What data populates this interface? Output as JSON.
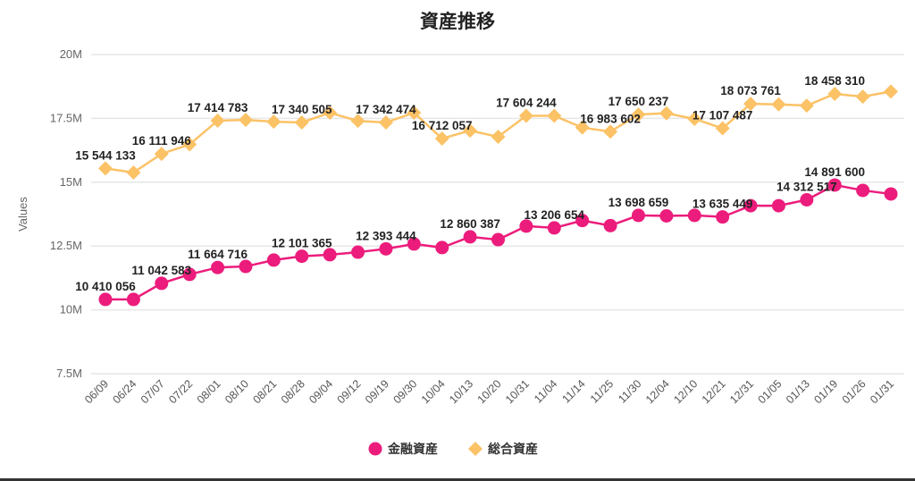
{
  "chart_data": {
    "type": "line",
    "title": "資産推移",
    "xlabel": "",
    "ylabel": "Values",
    "ylim": [
      7.5,
      20
    ],
    "yticks": [
      "7.5M",
      "10M",
      "12.5M",
      "15M",
      "17.5M",
      "20M"
    ],
    "ytick_values": [
      7.5,
      10,
      12.5,
      15,
      17.5,
      20
    ],
    "grid": true,
    "legend_position": "bottom-center",
    "categories": [
      "06/09",
      "06/24",
      "07/07",
      "07/22",
      "08/01",
      "08/10",
      "08/21",
      "08/28",
      "09/04",
      "09/12",
      "09/19",
      "09/30",
      "10/04",
      "10/13",
      "10/20",
      "10/31",
      "11/04",
      "11/14",
      "11/25",
      "11/30",
      "12/04",
      "12/10",
      "12/21",
      "12/31",
      "01/05",
      "01/13",
      "01/19",
      "01/26",
      "01/31"
    ],
    "series": [
      {
        "name": "金融資産",
        "color": "#ec1c7c",
        "marker": "circle",
        "values": [
          10.41,
          10.41,
          11.04,
          11.39,
          11.66,
          11.7,
          11.95,
          12.1,
          12.16,
          12.26,
          12.39,
          12.58,
          12.44,
          12.86,
          12.75,
          13.28,
          13.21,
          13.5,
          13.3,
          13.7,
          13.68,
          13.7,
          13.64,
          14.08,
          14.08,
          14.31,
          14.89,
          14.68,
          14.54
        ],
        "labels": [
          "10 410 056",
          null,
          "11 042 583",
          null,
          "11 664 716",
          null,
          null,
          "12 101 365",
          null,
          null,
          "12 393 444",
          null,
          null,
          "12 860 387",
          null,
          null,
          "13 206 654",
          null,
          null,
          "13 698 659",
          null,
          null,
          "13 635 449",
          null,
          null,
          "14 312 517",
          "14 891 600",
          null,
          null
        ]
      },
      {
        "name": "総合資産",
        "color": "#fbc266",
        "marker": "diamond",
        "values": [
          15.54,
          15.38,
          16.11,
          16.48,
          17.41,
          17.44,
          17.37,
          17.34,
          17.72,
          17.4,
          17.34,
          17.72,
          16.71,
          17.02,
          16.78,
          17.6,
          17.6,
          17.14,
          16.98,
          17.65,
          17.7,
          17.48,
          17.11,
          18.07,
          18.05,
          18.0,
          18.46,
          18.35,
          18.55
        ],
        "labels": [
          "15 544 133",
          null,
          "16 111 946",
          null,
          "17 414 783",
          null,
          null,
          "17 340 505",
          null,
          null,
          "17 342 474",
          null,
          "16 712 057",
          null,
          null,
          "17 604 244",
          null,
          null,
          "16 983 602",
          "17 650 237",
          null,
          null,
          "17 107 487",
          "18 073 761",
          null,
          null,
          "18 458 310",
          null,
          null
        ]
      }
    ]
  }
}
